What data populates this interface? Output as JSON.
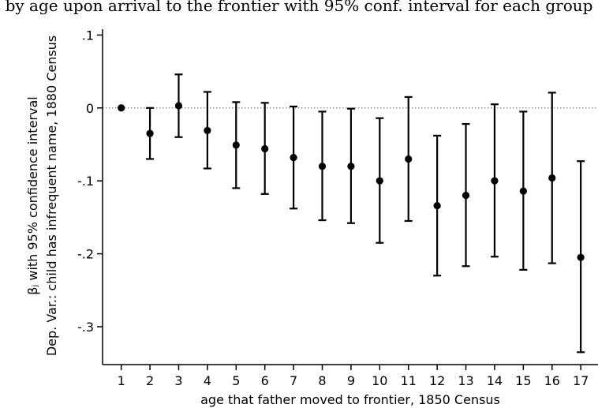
{
  "top_caption": "by age upon arrival to the frontier with 95% conf. interval for each group",
  "chart_data": {
    "type": "scatter",
    "title": "",
    "xlabel": "age that father moved to frontier, 1850 Census",
    "ylabel_line1": "βⱼ with 95% confidence interval",
    "ylabel_line2": "Dep. Var.: child has infrequent name, 1880 Census",
    "x": [
      1,
      2,
      3,
      4,
      5,
      6,
      7,
      8,
      9,
      10,
      11,
      12,
      13,
      14,
      15,
      16,
      17
    ],
    "x_tick_labels": [
      "1",
      "2",
      "3",
      "4",
      "5",
      "6",
      "7",
      "8",
      "9",
      "10",
      "11",
      "12",
      "13",
      "14",
      "15",
      "16",
      "17"
    ],
    "estimate": [
      0,
      -0.035,
      0.003,
      -0.031,
      -0.051,
      -0.056,
      -0.068,
      -0.08,
      -0.08,
      -0.1,
      -0.07,
      -0.134,
      -0.12,
      -0.1,
      -0.114,
      -0.096,
      -0.205
    ],
    "ci_lower": [
      0,
      -0.07,
      -0.04,
      -0.083,
      -0.11,
      -0.118,
      -0.138,
      -0.154,
      -0.158,
      -0.185,
      -0.155,
      -0.23,
      -0.217,
      -0.204,
      -0.222,
      -0.213,
      -0.335
    ],
    "ci_upper": [
      0,
      0.0,
      0.046,
      0.022,
      0.008,
      0.007,
      0.002,
      -0.005,
      -0.001,
      -0.014,
      0.015,
      -0.038,
      -0.022,
      0.005,
      -0.005,
      0.021,
      -0.073
    ],
    "y_ticks": [
      0.1,
      0,
      -0.1,
      -0.2,
      -0.3
    ],
    "y_tick_labels": [
      ".1",
      "0",
      "-.1",
      "-.2",
      "-.3"
    ],
    "xlim": [
      0.35,
      17.6
    ],
    "ylim": [
      -0.352,
      0.108
    ],
    "reference_line": 0,
    "grid": false,
    "legend": "none"
  }
}
